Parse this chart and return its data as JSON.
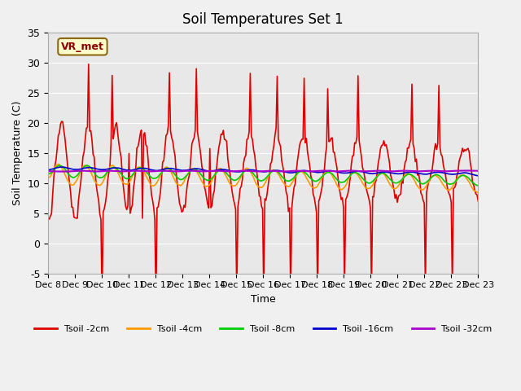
{
  "title": "Soil Temperatures Set 1",
  "xlabel": "Time",
  "ylabel": "Soil Temperature (C)",
  "ylim": [
    -5,
    35
  ],
  "background_color": "#e8e8e8",
  "plot_bg_color": "#e8e8e8",
  "annotation_label": "VR_met",
  "series": {
    "Tsoil -2cm": {
      "color": "#dd0000",
      "lw": 1.2
    },
    "Tsoil -4cm": {
      "color": "#ff9900",
      "lw": 1.2
    },
    "Tsoil -8cm": {
      "color": "#00cc00",
      "lw": 1.2
    },
    "Tsoil -16cm": {
      "color": "#0000cc",
      "lw": 1.2
    },
    "Tsoil -32cm": {
      "color": "#aa00cc",
      "lw": 1.5
    }
  },
  "xtick_labels": [
    "Dec 8",
    "Dec 9",
    "Dec 10",
    "Dec 11",
    "Dec 12",
    "Dec 13",
    "Dec 14",
    "Dec 15",
    "Dec 16",
    "Dec 17",
    "Dec 18",
    "Dec 19",
    "Dec 20",
    "Dec 21",
    "Dec 22",
    "Dec 23"
  ],
  "ytick_values": [
    -5,
    0,
    5,
    10,
    15,
    20,
    25,
    30,
    35
  ],
  "n_points": 384,
  "seed": 42
}
